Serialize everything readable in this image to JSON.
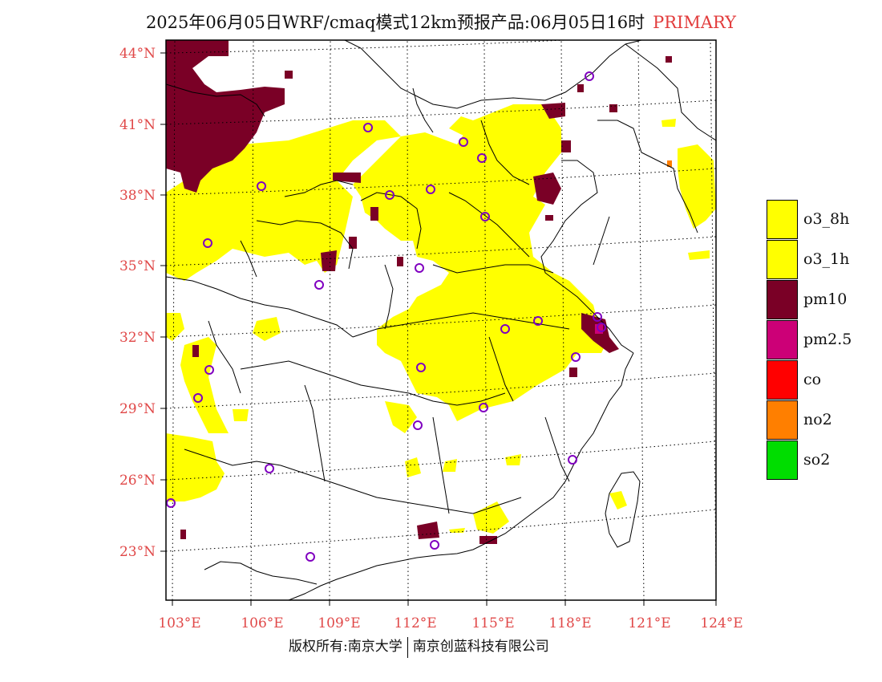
{
  "title": {
    "main": "2025年06月05日WRF/cmaq模式12km预报产品:06月05日16时",
    "tag": "PRIMARY"
  },
  "map": {
    "lat_labels": [
      "44°N",
      "41°N",
      "38°N",
      "35°N",
      "32°N",
      "29°N",
      "26°N",
      "23°N"
    ],
    "lon_labels": [
      "103°E",
      "106°E",
      "109°E",
      "112°E",
      "115°E",
      "118°E",
      "121°E",
      "124°E"
    ],
    "extent": {
      "lon_min": 102.7,
      "lon_max": 124.0,
      "lat_min": 21.0,
      "lat_max": 44.5
    },
    "station_marker": "circle-icon",
    "colors": {
      "o3_8h": "#ffff00",
      "pm10": "#7a0026",
      "station": "#8000c0",
      "border": "#000000",
      "grid": "#000000"
    }
  },
  "legend": [
    {
      "label": "o3_8h",
      "color": "#ffff00"
    },
    {
      "label": "o3_1h",
      "color": "#ffff00"
    },
    {
      "label": "pm10",
      "color": "#7a0026"
    },
    {
      "label": "pm2.5",
      "color": "#cc0077"
    },
    {
      "label": "co",
      "color": "#ff0000"
    },
    {
      "label": "no2",
      "color": "#ff7f00"
    },
    {
      "label": "so2",
      "color": "#00dd00"
    }
  ],
  "footer": {
    "left": "版权所有:南京大学",
    "right": "南京创蓝科技有限公司"
  }
}
